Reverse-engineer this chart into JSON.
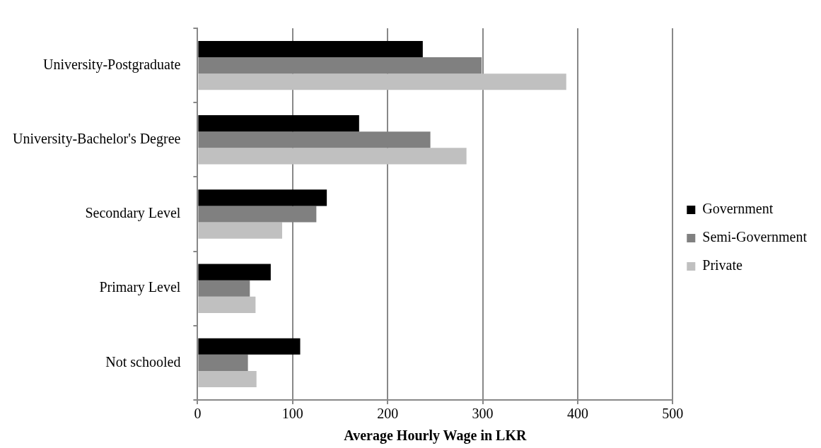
{
  "chart_data": {
    "type": "bar",
    "orientation": "horizontal",
    "xlabel": "Average Hourly Wage in LKR",
    "categories": [
      "University-Postgraduate",
      "University-Bachelor's Degree",
      "Secondary Level",
      "Primary Level",
      "Not schooled"
    ],
    "series": [
      {
        "name": "Government",
        "color": "#000000",
        "values": [
          237,
          170,
          136,
          77,
          108
        ]
      },
      {
        "name": "Semi-Government",
        "color": "#808080",
        "values": [
          299,
          245,
          125,
          55,
          53
        ]
      },
      {
        "name": "Private",
        "color": "#c0c0c0",
        "values": [
          388,
          283,
          89,
          61,
          62
        ]
      }
    ],
    "xlim": [
      0,
      500
    ],
    "xticks": [
      0,
      100,
      200,
      300,
      400,
      500
    ],
    "grid": "x",
    "legend": "right"
  }
}
